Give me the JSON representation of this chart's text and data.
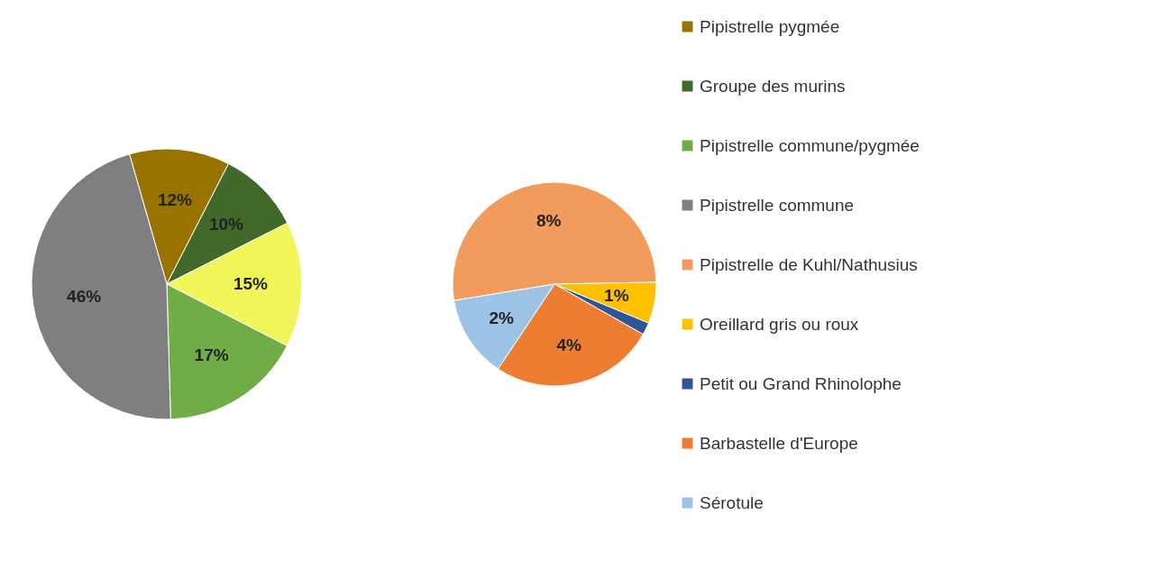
{
  "chart_data": [
    {
      "type": "pie",
      "categories": [
        "Pipistrelle pygmée",
        "Groupe des murins",
        null,
        "Pipistrelle commune/pygmée",
        "Pipistrelle commune"
      ],
      "values": [
        12,
        10,
        15,
        17,
        46
      ],
      "value_labels": [
        "12%",
        "10%",
        "15%",
        "17%",
        "46%"
      ],
      "colors": [
        "#997300",
        "#43682b",
        "#f0f55a",
        "#70ad47",
        "#7f7f7f"
      ],
      "legend": "right"
    },
    {
      "type": "pie",
      "categories": [
        "Pipistrelle de Kuhl/Nathusius",
        "Oreillard gris ou roux",
        "Petit ou Grand Rhinolophe",
        "Barbastelle d'Europe",
        "Sérotule"
      ],
      "values": [
        8,
        1,
        0.3,
        4,
        2
      ],
      "value_labels": [
        "8%",
        "1%",
        null,
        "4%",
        "2%"
      ],
      "colors": [
        "#f19c5c",
        "#ffc000",
        "#2f5597",
        "#ed7d31",
        "#9dc3e6"
      ],
      "legend": "right"
    }
  ]
}
